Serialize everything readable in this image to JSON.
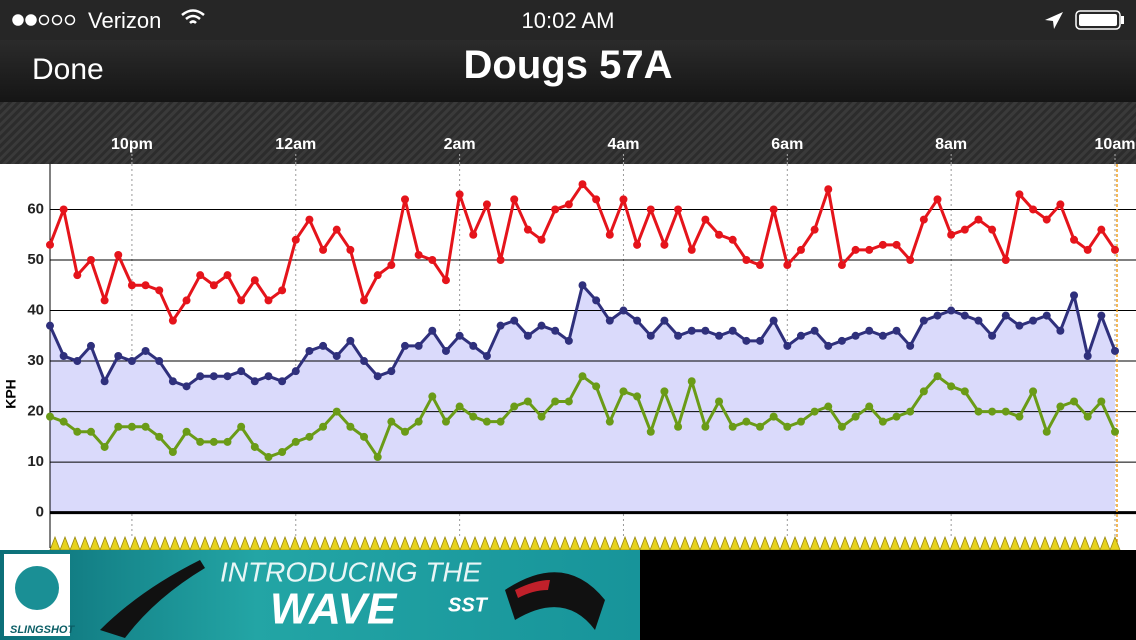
{
  "status_bar": {
    "carrier": "Verizon",
    "time": "10:02 AM"
  },
  "nav": {
    "back": "Done",
    "title": "Dougs 57A"
  },
  "chart_data": {
    "type": "line",
    "y_label": "KPH",
    "categories": [
      null,
      null,
      null,
      null,
      null,
      null,
      "10pm",
      null,
      null,
      null,
      null,
      null,
      null,
      null,
      null,
      null,
      null,
      null,
      "12am",
      null,
      null,
      null,
      null,
      null,
      null,
      null,
      null,
      null,
      null,
      null,
      "2am",
      null,
      null,
      null,
      null,
      null,
      null,
      null,
      null,
      null,
      null,
      null,
      "4am",
      null,
      null,
      null,
      null,
      null,
      null,
      null,
      null,
      null,
      null,
      null,
      "6am",
      null,
      null,
      null,
      null,
      null,
      null,
      null,
      null,
      null,
      null,
      null,
      "8am",
      null,
      null,
      null,
      null,
      null,
      null,
      null,
      null,
      null,
      null,
      null,
      "10am"
    ],
    "series": [
      {
        "color": "#e5141b",
        "values": [
          53,
          60,
          47,
          50,
          42,
          51,
          45,
          45,
          44,
          38,
          42,
          47,
          45,
          47,
          42,
          46,
          42,
          44,
          54,
          58,
          52,
          56,
          52,
          42,
          47,
          49,
          62,
          51,
          50,
          46,
          63,
          55,
          61,
          50,
          62,
          56,
          54,
          60,
          61,
          65,
          62,
          55,
          62,
          53,
          60,
          53,
          60,
          52,
          58,
          55,
          54,
          50,
          49,
          60,
          49,
          52,
          56,
          64,
          49,
          52,
          52,
          53,
          53,
          50,
          58,
          62,
          55,
          56,
          58,
          56,
          50,
          63,
          60,
          58,
          61,
          54,
          52,
          56,
          52
        ]
      },
      {
        "color": "#2f307c",
        "fill": "#dadafb",
        "values": [
          37,
          31,
          30,
          33,
          26,
          31,
          30,
          32,
          30,
          26,
          25,
          27,
          27,
          27,
          28,
          26,
          27,
          26,
          28,
          32,
          33,
          31,
          34,
          30,
          27,
          28,
          33,
          33,
          36,
          32,
          35,
          33,
          31,
          37,
          38,
          35,
          37,
          36,
          34,
          45,
          42,
          38,
          40,
          38,
          35,
          38,
          35,
          36,
          36,
          35,
          36,
          34,
          34,
          38,
          33,
          35,
          36,
          33,
          34,
          35,
          36,
          35,
          36,
          33,
          38,
          39,
          40,
          39,
          38,
          35,
          39,
          37,
          38,
          39,
          36,
          43,
          31,
          39,
          32
        ]
      },
      {
        "color": "#6a9b17",
        "values": [
          19,
          18,
          16,
          16,
          13,
          17,
          17,
          17,
          15,
          12,
          16,
          14,
          14,
          14,
          17,
          13,
          11,
          12,
          14,
          15,
          17,
          20,
          17,
          15,
          11,
          18,
          16,
          18,
          23,
          18,
          21,
          19,
          18,
          18,
          21,
          22,
          19,
          22,
          22,
          27,
          25,
          18,
          24,
          23,
          16,
          24,
          17,
          26,
          17,
          22,
          17,
          18,
          17,
          19,
          17,
          18,
          20,
          21,
          17,
          19,
          21,
          18,
          19,
          20,
          24,
          27,
          25,
          24,
          20,
          20,
          20,
          19,
          24,
          16,
          21,
          22,
          19,
          22,
          16
        ]
      }
    ],
    "ylim": [
      -7,
      69
    ],
    "yticks": [
      0,
      10,
      20,
      30,
      40,
      50,
      60
    ],
    "grid": true
  },
  "ad": {
    "headline": "INTRODUCING THE",
    "product": "WAVE",
    "model": "SST",
    "brand": "SLINGSHOT"
  }
}
